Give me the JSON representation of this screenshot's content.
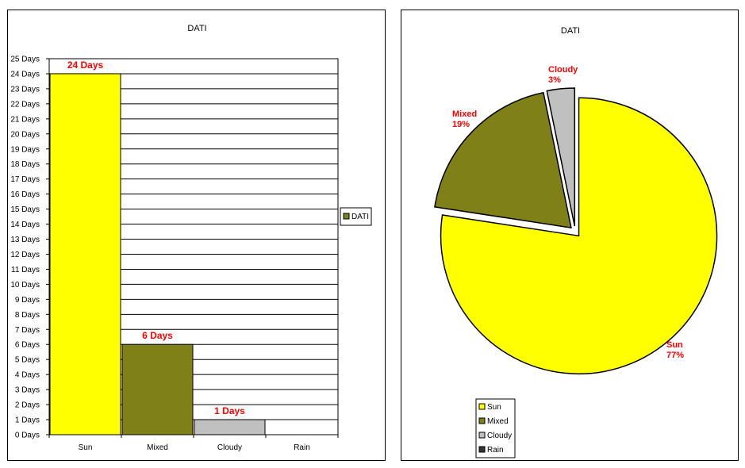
{
  "chart_data": [
    {
      "type": "bar",
      "title": "DATI",
      "categories": [
        "Sun",
        "Mixed",
        "Cloudy",
        "Rain"
      ],
      "series": [
        {
          "name": "DATI",
          "values": [
            24,
            6,
            1,
            0
          ]
        }
      ],
      "data_labels": [
        "24 Days",
        "6 Days",
        "1 Days",
        ""
      ],
      "colors": [
        "#ffff00",
        "#808019",
        "#c0c0c0",
        "#333333"
      ],
      "ylim": [
        0,
        25
      ],
      "ytick_labels": [
        "0 Days",
        "1 Days",
        "2 Days",
        "3 Days",
        "4 Days",
        "5 Days",
        "6 Days",
        "7 Days",
        "8 Days",
        "9 Days",
        "10 Days",
        "11 Days",
        "12 Days",
        "13 Days",
        "14 Days",
        "15 Days",
        "16 Days",
        "17 Days",
        "18 Days",
        "19 Days",
        "20 Days",
        "21 Days",
        "22 Days",
        "23 Days",
        "24 Days",
        "25 Days"
      ],
      "grid": true,
      "legend_position": "right",
      "legend_swatch_color": "#808019",
      "xlabel": "",
      "ylabel": ""
    },
    {
      "type": "pie",
      "title": "DATI",
      "categories": [
        "Sun",
        "Mixed",
        "Cloudy",
        "Rain"
      ],
      "values": [
        24,
        6,
        1,
        0
      ],
      "label_names": [
        "Sun",
        "Mixed",
        "Cloudy"
      ],
      "label_percents": [
        "77%",
        "19%",
        "3%"
      ],
      "colors": [
        "#ffff00",
        "#808019",
        "#c0c0c0",
        "#333333"
      ],
      "exploded": true,
      "legend_position": "bottom-left"
    }
  ]
}
